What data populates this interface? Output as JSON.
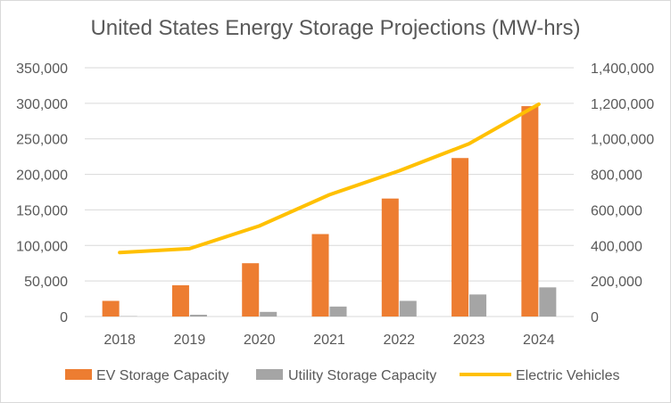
{
  "chart_data": {
    "type": "bar",
    "title": "United States Energy Storage Projections (MW-hrs)",
    "categories": [
      "2018",
      "2019",
      "2020",
      "2021",
      "2022",
      "2023",
      "2024"
    ],
    "y_left": {
      "lim": [
        0,
        350000
      ],
      "ticks": [
        "0",
        "50,000",
        "100,000",
        "150,000",
        "200,000",
        "250,000",
        "300,000",
        "350,000"
      ]
    },
    "y_right": {
      "lim": [
        0,
        1400000
      ],
      "ticks": [
        "0",
        "200,000",
        "400,000",
        "600,000",
        "800,000",
        "1,000,000",
        "1,200,000",
        "1,400,000"
      ]
    },
    "series": [
      {
        "name": "EV Storage Capacity",
        "kind": "bar",
        "axis": "left",
        "color": "#ED7D31",
        "values": [
          22000,
          44000,
          75000,
          116000,
          166000,
          223000,
          296000
        ]
      },
      {
        "name": "Utility Storage Capacity",
        "kind": "bar",
        "axis": "left",
        "color": "#A5A5A5",
        "values": [
          500,
          2500,
          6500,
          14000,
          22000,
          31000,
          41000
        ]
      },
      {
        "name": "Electric Vehicles",
        "kind": "line",
        "axis": "right",
        "color": "#FFC000",
        "values": [
          360000,
          382000,
          510000,
          685000,
          820000,
          972000,
          1195000
        ]
      }
    ],
    "grid": true,
    "legend": "bottom"
  }
}
